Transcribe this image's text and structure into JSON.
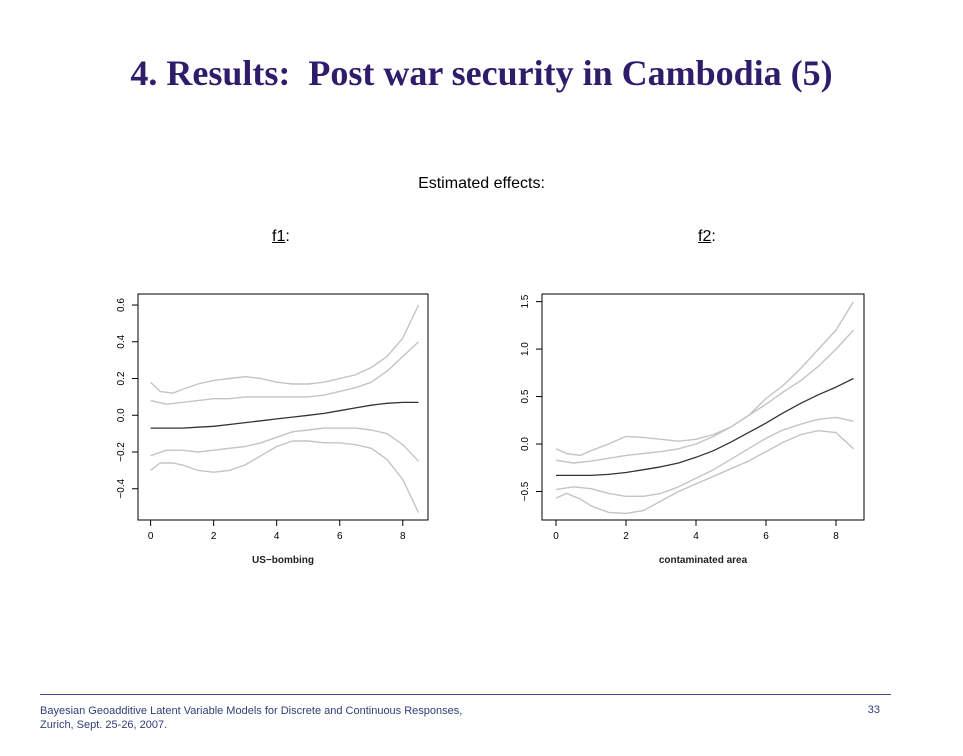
{
  "slide": {
    "title": "4. Results:  Post war security in Cambodia (5)",
    "subtitle": "Estimated effects:",
    "panels": [
      {
        "name_underlined": "f1",
        "suffix": ":"
      },
      {
        "name_underlined": "f2",
        "suffix": ":"
      }
    ]
  },
  "footer": {
    "line1": "Bayesian Geoadditive Latent Variable Models for Discrete and Continuous Responses,",
    "line2": "Zurich, Sept. 25-26, 2007.",
    "page_number": "33"
  },
  "chart_data": [
    {
      "type": "line",
      "xlabel": "US−bombing",
      "ylabel": "",
      "xlim": [
        -0.4,
        8.8
      ],
      "ylim": [
        -0.57,
        0.66
      ],
      "xticks": [
        0,
        2,
        4,
        6,
        8
      ],
      "yticks": [
        -0.4,
        -0.2,
        0.0,
        0.2,
        0.4,
        0.6
      ],
      "ytick_labels": [
        "−0.4",
        "−0.2",
        "0.0",
        "0.2",
        "0.4",
        "0.6"
      ],
      "grid": false,
      "colors": {
        "estimate": "#333333",
        "band": "#c4c4c4"
      },
      "series": [
        {
          "role": "estimate",
          "x": [
            0,
            0.5,
            1,
            1.5,
            2,
            2.5,
            3,
            3.5,
            4,
            4.5,
            5,
            5.5,
            6,
            6.5,
            7,
            7.5,
            8,
            8.5
          ],
          "y": [
            -0.07,
            -0.07,
            -0.07,
            -0.065,
            -0.06,
            -0.05,
            -0.04,
            -0.03,
            -0.02,
            -0.01,
            0.0,
            0.01,
            0.025,
            0.04,
            0.055,
            0.065,
            0.07,
            0.07
          ]
        },
        {
          "role": "band-inner-upper",
          "x": [
            0,
            0.5,
            1,
            1.5,
            2,
            2.5,
            3,
            3.5,
            4,
            4.5,
            5,
            5.5,
            6,
            6.5,
            7,
            7.5,
            8,
            8.5
          ],
          "y": [
            0.08,
            0.06,
            0.07,
            0.08,
            0.09,
            0.09,
            0.1,
            0.1,
            0.1,
            0.1,
            0.1,
            0.11,
            0.13,
            0.15,
            0.18,
            0.24,
            0.32,
            0.4
          ]
        },
        {
          "role": "band-inner-lower",
          "x": [
            0,
            0.5,
            1,
            1.5,
            2,
            2.5,
            3,
            3.5,
            4,
            4.5,
            5,
            5.5,
            6,
            6.5,
            7,
            7.5,
            8,
            8.5
          ],
          "y": [
            -0.22,
            -0.19,
            -0.19,
            -0.2,
            -0.19,
            -0.18,
            -0.17,
            -0.15,
            -0.12,
            -0.09,
            -0.08,
            -0.07,
            -0.07,
            -0.07,
            -0.08,
            -0.1,
            -0.16,
            -0.25
          ]
        },
        {
          "role": "band-outer-upper",
          "x": [
            0,
            0.3,
            0.7,
            1,
            1.5,
            2,
            2.5,
            3,
            3.5,
            4,
            4.5,
            5,
            5.5,
            6,
            6.5,
            7,
            7.5,
            8,
            8.5
          ],
          "y": [
            0.18,
            0.13,
            0.12,
            0.14,
            0.17,
            0.19,
            0.2,
            0.21,
            0.2,
            0.18,
            0.17,
            0.17,
            0.18,
            0.2,
            0.22,
            0.26,
            0.32,
            0.42,
            0.6
          ]
        },
        {
          "role": "band-outer-lower",
          "x": [
            0,
            0.3,
            0.7,
            1,
            1.5,
            2,
            2.5,
            3,
            3.5,
            4,
            4.5,
            5,
            5.5,
            6,
            6.5,
            7,
            7.5,
            8,
            8.5
          ],
          "y": [
            -0.3,
            -0.26,
            -0.26,
            -0.27,
            -0.3,
            -0.31,
            -0.3,
            -0.27,
            -0.22,
            -0.17,
            -0.14,
            -0.14,
            -0.15,
            -0.15,
            -0.16,
            -0.18,
            -0.24,
            -0.35,
            -0.53
          ]
        }
      ]
    },
    {
      "type": "line",
      "xlabel": "contaminated area",
      "ylabel": "",
      "xlim": [
        -0.4,
        8.8
      ],
      "ylim": [
        -0.8,
        1.58
      ],
      "xticks": [
        0,
        2,
        4,
        6,
        8
      ],
      "yticks": [
        -0.5,
        0.0,
        0.5,
        1.0,
        1.5
      ],
      "ytick_labels": [
        "−0.5",
        "0.0",
        "0.5",
        "1.0",
        "1.5"
      ],
      "grid": false,
      "colors": {
        "estimate": "#333333",
        "band": "#c4c4c4"
      },
      "series": [
        {
          "role": "estimate",
          "x": [
            0,
            0.5,
            1,
            1.5,
            2,
            2.5,
            3,
            3.5,
            4,
            4.5,
            5,
            5.5,
            6,
            6.5,
            7,
            7.5,
            8,
            8.5
          ],
          "y": [
            -0.33,
            -0.33,
            -0.33,
            -0.32,
            -0.3,
            -0.27,
            -0.24,
            -0.2,
            -0.14,
            -0.07,
            0.02,
            0.12,
            0.22,
            0.33,
            0.43,
            0.52,
            0.6,
            0.69
          ]
        },
        {
          "role": "band-inner-upper",
          "x": [
            0,
            0.5,
            1,
            1.5,
            2,
            2.5,
            3,
            3.5,
            4,
            4.5,
            5,
            5.5,
            6,
            6.5,
            7,
            7.5,
            8,
            8.5
          ],
          "y": [
            -0.17,
            -0.2,
            -0.18,
            -0.15,
            -0.12,
            -0.1,
            -0.08,
            -0.05,
            0.0,
            0.08,
            0.18,
            0.3,
            0.42,
            0.55,
            0.67,
            0.82,
            1.0,
            1.2
          ]
        },
        {
          "role": "band-inner-lower",
          "x": [
            0,
            0.5,
            1,
            1.5,
            2,
            2.5,
            3,
            3.5,
            4,
            4.5,
            5,
            5.5,
            6,
            6.5,
            7,
            7.5,
            8,
            8.5
          ],
          "y": [
            -0.48,
            -0.45,
            -0.47,
            -0.52,
            -0.55,
            -0.55,
            -0.52,
            -0.45,
            -0.36,
            -0.27,
            -0.16,
            -0.05,
            0.06,
            0.15,
            0.21,
            0.26,
            0.28,
            0.24
          ]
        },
        {
          "role": "band-outer-upper",
          "x": [
            0,
            0.3,
            0.7,
            1,
            1.5,
            2,
            2.5,
            3,
            3.5,
            4,
            4.5,
            5,
            5.5,
            6,
            6.5,
            7,
            7.5,
            8,
            8.5
          ],
          "y": [
            -0.05,
            -0.1,
            -0.12,
            -0.07,
            0.0,
            0.08,
            0.07,
            0.05,
            0.03,
            0.05,
            0.1,
            0.18,
            0.3,
            0.48,
            0.62,
            0.8,
            1.0,
            1.2,
            1.5
          ]
        },
        {
          "role": "band-outer-lower",
          "x": [
            0,
            0.3,
            0.7,
            1,
            1.5,
            2,
            2.5,
            3,
            3.5,
            4,
            4.5,
            5,
            5.5,
            6,
            6.5,
            7,
            7.5,
            8,
            8.5
          ],
          "y": [
            -0.57,
            -0.52,
            -0.58,
            -0.65,
            -0.72,
            -0.73,
            -0.7,
            -0.6,
            -0.5,
            -0.42,
            -0.34,
            -0.26,
            -0.18,
            -0.08,
            0.02,
            0.1,
            0.14,
            0.12,
            -0.05
          ]
        }
      ]
    }
  ]
}
